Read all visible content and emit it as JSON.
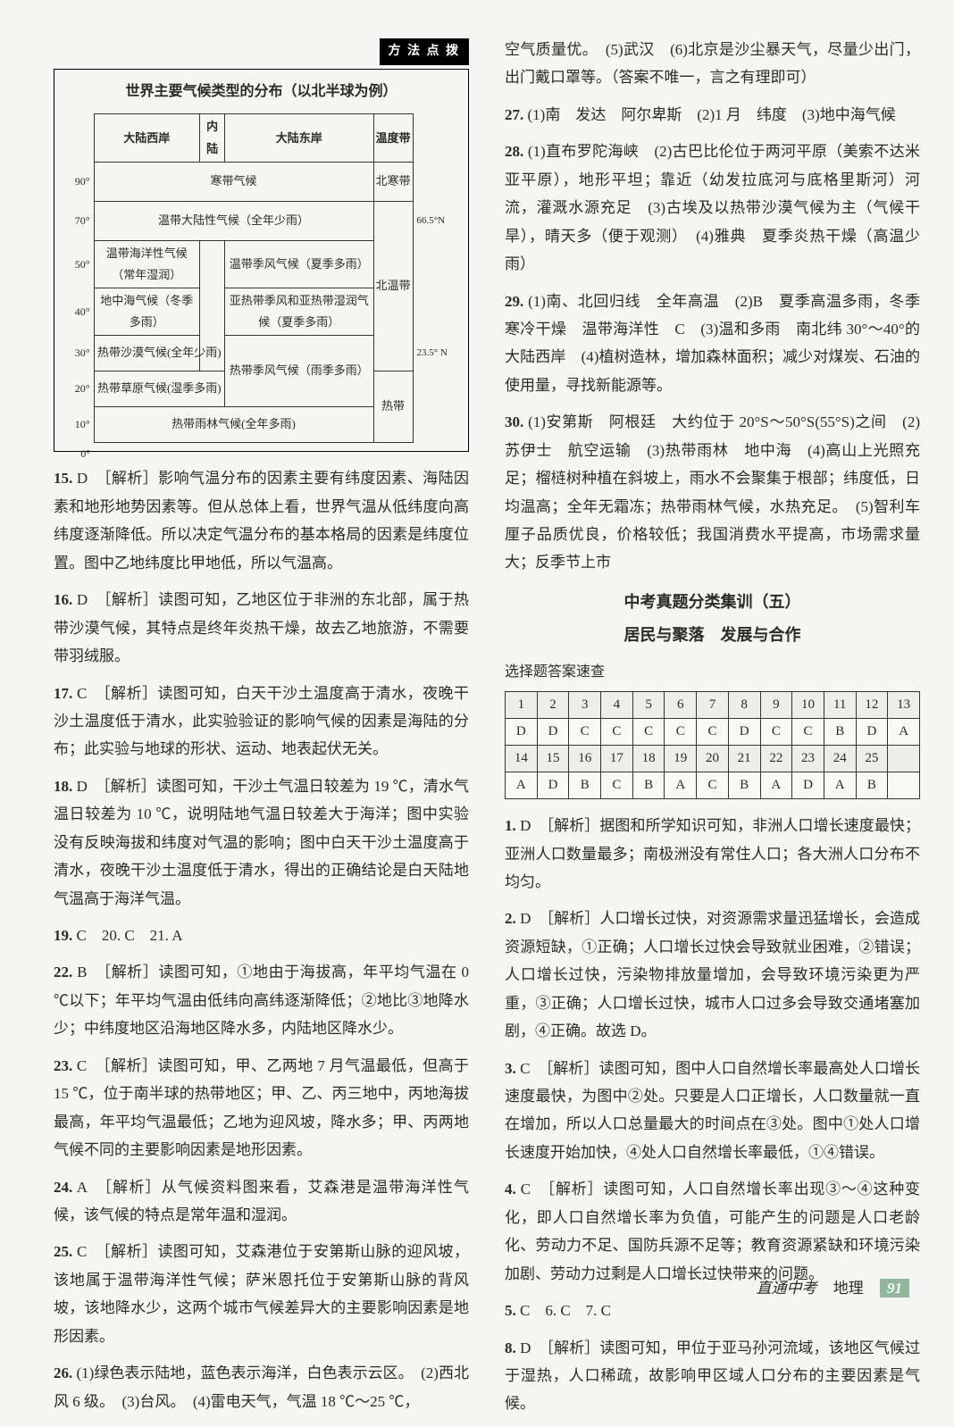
{
  "climate_box": {
    "method_label": "方 法 点 拨",
    "title": "世界主要气候类型的分布（以北半球为例）",
    "headers": [
      "大陆西岸",
      "内 陆",
      "大陆东岸",
      "温度带"
    ],
    "latitudes": [
      "90°",
      "70°",
      "50°",
      "40°",
      "30°",
      "20°",
      "10°",
      "0°"
    ],
    "annotations": [
      "66.5°N",
      "23.5° N"
    ],
    "rows": [
      {
        "west": "寒带气候",
        "span_west": 3,
        "zone": "北寒带",
        "zone_span": 1
      },
      {
        "west": "温带大陆性气候（全年少雨）"
      },
      {
        "west": "温带海洋性气候（常年湿润）",
        "east": "温带季风气候（夏季多雨）",
        "zone": "北温带",
        "zone_span": 3
      },
      {
        "west": "地中海气候（冬季多雨）",
        "east": "亚热带季风和亚热带湿润气候（夏季多雨）"
      },
      {
        "west": "热带沙漠气候(全年少雨)",
        "east": "热带季风气候（雨季多雨）"
      },
      {
        "west": "热带草原气候(湿季多雨)",
        "zone": "热带",
        "zone_span": 2
      },
      {
        "west": "热带雨林气候(全年多雨)",
        "span_west": 3
      }
    ]
  },
  "left_answers": [
    {
      "num": "15.",
      "letter": "D",
      "text": "［解析］影响气温分布的因素主要有纬度因素、海陆因素和地形地势因素等。但从总体上看，世界气温从低纬度向高纬度逐渐降低。所以决定气温分布的基本格局的因素是纬度位置。图中乙地纬度比甲地低，所以气温高。"
    },
    {
      "num": "16.",
      "letter": "D",
      "text": "［解析］读图可知，乙地区位于非洲的东北部，属于热带沙漠气候，其特点是终年炎热干燥，故去乙地旅游，不需要带羽绒服。"
    },
    {
      "num": "17.",
      "letter": "C",
      "text": "［解析］读图可知，白天干沙土温度高于清水，夜晚干沙土温度低于清水，此实验验证的影响气候的因素是海陆的分布；此实验与地球的形状、运动、地表起伏无关。"
    },
    {
      "num": "18.",
      "letter": "D",
      "text": "［解析］读图可知，干沙土气温日较差为 19 ℃，清水气温日较差为 10 ℃，说明陆地气温日较差大于海洋；图中实验没有反映海拔和纬度对气温的影响；图中白天干沙土温度高于清水，夜晚干沙土温度低于清水，得出的正确结论是白天陆地气温高于海洋气温。"
    },
    {
      "num": "19.",
      "letter": "C　20. C　21. A",
      "text": ""
    },
    {
      "num": "22.",
      "letter": "B",
      "text": "［解析］读图可知，①地由于海拔高，年平均气温在 0 ℃以下；年平均气温由低纬向高纬逐渐降低；②地比③地降水少；中纬度地区沿海地区降水多，内陆地区降水少。"
    },
    {
      "num": "23.",
      "letter": "C",
      "text": "［解析］读图可知，甲、乙两地 7 月气温最低，但高于15 ℃，位于南半球的热带地区；甲、乙、丙三地中，丙地海拔最高，年平均气温最低；乙地为迎风坡，降水多；甲、丙两地气候不同的主要影响因素是地形因素。"
    },
    {
      "num": "24.",
      "letter": "A",
      "text": "［解析］从气候资料图来看，艾森港是温带海洋性气候，该气候的特点是常年温和湿润。"
    },
    {
      "num": "25.",
      "letter": "C",
      "text": "［解析］读图可知，艾森港位于安第斯山脉的迎风坡，该地属于温带海洋性气候；萨米恩托位于安第斯山脉的背风坡，该地降水少，这两个城市气候差异大的主要影响因素是地形因素。"
    },
    {
      "num": "26.",
      "letter": "",
      "text": "(1)绿色表示陆地，蓝色表示海洋，白色表示云区。　(2)西北风 6 级。　(3)台风。　(4)雷电天气，气温 18 ℃～25 ℃，"
    }
  ],
  "right_top": [
    {
      "text": "空气质量优。　(5)武汉　(6)北京是沙尘暴天气，尽量少出门，出门戴口罩等。（答案不唯一，言之有理即可）"
    },
    {
      "num": "27.",
      "text": "(1)南　发达　阿尔卑斯　(2)1 月　纬度　(3)地中海气候"
    },
    {
      "num": "28.",
      "text": "(1)直布罗陀海峡　(2)古巴比伦位于两河平原（美索不达米亚平原），地形平坦；靠近（幼发拉底河与底格里斯河）河流，灌溉水源充足　(3)古埃及以热带沙漠气候为主（气候干旱），晴天多（便于观测）　(4)雅典　夏季炎热干燥（高温少雨）"
    },
    {
      "num": "29.",
      "text": "(1)南、北回归线　全年高温　(2)B　夏季高温多雨，冬季寒冷干燥　温带海洋性　C　(3)温和多雨　南北纬 30°～40°的大陆西岸　(4)植树造林，增加森林面积；减少对煤炭、石油的使用量，寻找新能源等。"
    },
    {
      "num": "30.",
      "text": "(1)安第斯　阿根廷　大约位于 20°S～50°S(55°S)之间　(2)苏伊士　航空运输　(3)热带雨林　地中海　(4)高山上光照充足；榴梿树种植在斜坡上，雨水不会聚集于根部；纬度低，日均温高；全年无霜冻；热带雨林气候，水热充足。　(5)智利车厘子品质优良，价格较低；我国消费水平提高，市场需求量大；反季节上市"
    }
  ],
  "section_five": {
    "title": "中考真题分类集训（五）",
    "subtitle": "居民与聚落　发展与合作",
    "quick_label": "选择题答案速查",
    "table": {
      "row1_nums": [
        "1",
        "2",
        "3",
        "4",
        "5",
        "6",
        "7",
        "8",
        "9",
        "10",
        "11",
        "12",
        "13"
      ],
      "row1_ans": [
        "D",
        "D",
        "C",
        "C",
        "C",
        "C",
        "C",
        "D",
        "C",
        "C",
        "B",
        "D",
        "A"
      ],
      "row2_nums": [
        "14",
        "15",
        "16",
        "17",
        "18",
        "19",
        "20",
        "21",
        "22",
        "23",
        "24",
        "25",
        ""
      ],
      "row2_ans": [
        "A",
        "D",
        "B",
        "C",
        "B",
        "A",
        "C",
        "B",
        "A",
        "D",
        "A",
        "B",
        ""
      ]
    }
  },
  "right_answers": [
    {
      "num": "1.",
      "letter": "D",
      "text": "［解析］据图和所学知识可知，非洲人口增长速度最快；亚洲人口数量最多；南极洲没有常住人口；各大洲人口分布不均匀。"
    },
    {
      "num": "2.",
      "letter": "D",
      "text": "［解析］人口增长过快，对资源需求量迅猛增长，会造成资源短缺，①正确；人口增长过快会导致就业困难，②错误；人口增长过快，污染物排放量增加，会导致环境污染更为严重，③正确；人口增长过快，城市人口过多会导致交通堵塞加剧，④正确。故选 D。"
    },
    {
      "num": "3.",
      "letter": "C",
      "text": "［解析］读图可知，图中人口自然增长率最高处人口增长速度最快，为图中②处。只要是人口正增长，人口数量就一直在增加，所以人口总量最大的时间点在③处。图中①处人口增长速度开始加快，④处人口自然增长率最低，①④错误。"
    },
    {
      "num": "4.",
      "letter": "C",
      "text": "［解析］读图可知，人口自然增长率出现③～④这种变化，即人口自然增长率为负值，可能产生的问题是人口老龄化、劳动力不足、国防兵源不足等；教育资源紧缺和环境污染加剧、劳动力过剩是人口增长过快带来的问题。"
    },
    {
      "num": "5.",
      "letter": "C　6. C　7. C",
      "text": ""
    },
    {
      "num": "8.",
      "letter": "D",
      "text": "［解析］读图可知，甲位于亚马孙河流域，该地区气候过于湿热，人口稀疏，故影响甲区域人口分布的主要因素是气候。"
    }
  ],
  "footer": {
    "book": "直通中考",
    "subject": "地理",
    "page": "91"
  }
}
